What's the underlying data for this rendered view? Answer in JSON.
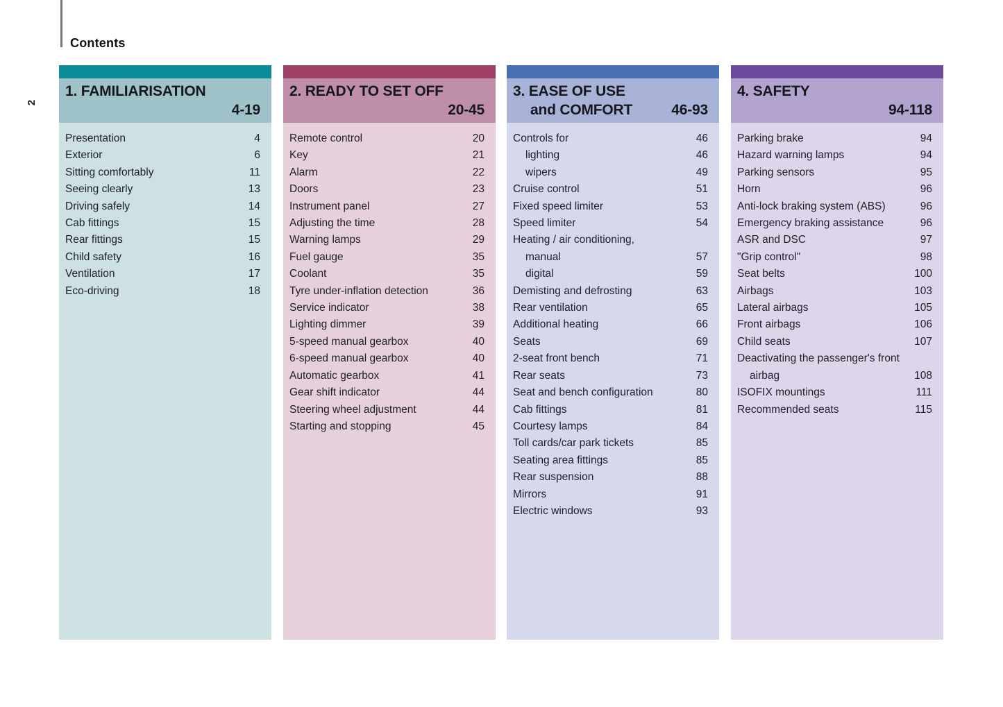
{
  "page": {
    "contents_label": "Contents",
    "page_number": "2"
  },
  "sections": [
    {
      "id": "familiarisation",
      "title_line1": "1. FAMILIARISATION",
      "title_line2": "",
      "page_range": "4-19",
      "colors": {
        "bar": "#0a8d99",
        "header": "#9fc3c8",
        "body": "#cde0e2"
      },
      "items": [
        {
          "label": "Presentation",
          "page": "4"
        },
        {
          "label": "Exterior",
          "page": "6"
        },
        {
          "label": "Sitting comfortably",
          "page": "11"
        },
        {
          "label": "Seeing clearly",
          "page": "13"
        },
        {
          "label": "Driving safely",
          "page": "14"
        },
        {
          "label": "Cab fittings",
          "page": "15"
        },
        {
          "label": "Rear fittings",
          "page": "15"
        },
        {
          "label": "Child safety",
          "page": "16"
        },
        {
          "label": "Ventilation",
          "page": "17"
        },
        {
          "label": "Eco-driving",
          "page": "18"
        }
      ]
    },
    {
      "id": "ready-to-set-off",
      "title_line1": "2. READY TO SET OFF",
      "title_line2": "",
      "page_range": "20-45",
      "colors": {
        "bar": "#a04066",
        "header": "#bf8fa7",
        "body": "#e6d0db"
      },
      "items": [
        {
          "label": "Remote control",
          "page": "20"
        },
        {
          "label": "Key",
          "page": "21"
        },
        {
          "label": "Alarm",
          "page": "22"
        },
        {
          "label": "Doors",
          "page": "23"
        },
        {
          "label": "Instrument panel",
          "page": "27"
        },
        {
          "label": "Adjusting the time",
          "page": "28"
        },
        {
          "label": "Warning lamps",
          "page": "29"
        },
        {
          "label": "Fuel gauge",
          "page": "35"
        },
        {
          "label": "Coolant",
          "page": "35"
        },
        {
          "label": "Tyre under-inflation detection",
          "page": "36"
        },
        {
          "label": "Service indicator",
          "page": "38"
        },
        {
          "label": "Lighting dimmer",
          "page": "39"
        },
        {
          "label": "5-speed manual gearbox",
          "page": "40"
        },
        {
          "label": "6-speed manual gearbox",
          "page": "40"
        },
        {
          "label": "Automatic gearbox",
          "page": "41"
        },
        {
          "label": "Gear shift indicator",
          "page": "44"
        },
        {
          "label": "Steering wheel adjustment",
          "page": "44"
        },
        {
          "label": "Starting and stopping",
          "page": "45"
        }
      ]
    },
    {
      "id": "ease-of-use-and-comfort",
      "title_line1": "3. EASE OF USE",
      "title_line2": "and COMFORT",
      "page_range": "46-93",
      "colors": {
        "bar": "#4a70b4",
        "header": "#a8b3d7",
        "body": "#d5d9eb"
      },
      "items": [
        {
          "label": "Controls for",
          "page": "46"
        },
        {
          "label": "lighting",
          "page": "46",
          "indent": true
        },
        {
          "label": "wipers",
          "page": "49",
          "indent": true
        },
        {
          "label": "Cruise control",
          "page": "51"
        },
        {
          "label": "Fixed speed limiter",
          "page": "53"
        },
        {
          "label": "Speed limiter",
          "page": "54"
        },
        {
          "label": "Heating / air conditioning,",
          "page": ""
        },
        {
          "label": "manual",
          "page": "57",
          "indent": true
        },
        {
          "label": "digital",
          "page": "59",
          "indent": true
        },
        {
          "label": "Demisting and defrosting",
          "page": "63"
        },
        {
          "label": "Rear ventilation",
          "page": "65"
        },
        {
          "label": "Additional heating",
          "page": "66"
        },
        {
          "label": "Seats",
          "page": "69"
        },
        {
          "label": "2-seat front bench",
          "page": "71"
        },
        {
          "label": "Rear seats",
          "page": "73"
        },
        {
          "label": "Seat and bench configuration",
          "page": "80"
        },
        {
          "label": "Cab fittings",
          "page": "81"
        },
        {
          "label": "Courtesy lamps",
          "page": "84"
        },
        {
          "label": "Toll cards/car park tickets",
          "page": "85"
        },
        {
          "label": "Seating area fittings",
          "page": "85"
        },
        {
          "label": "Rear suspension",
          "page": "88"
        },
        {
          "label": "Mirrors",
          "page": "91"
        },
        {
          "label": "Electric windows",
          "page": "93"
        }
      ]
    },
    {
      "id": "safety",
      "title_line1": "4. SAFETY",
      "title_line2": "",
      "page_range": "94-118",
      "colors": {
        "bar": "#6a4b9d",
        "header": "#b2a3cf",
        "body": "#ddd6ea"
      },
      "items": [
        {
          "label": "Parking brake",
          "page": "94"
        },
        {
          "label": "Hazard warning lamps",
          "page": "94"
        },
        {
          "label": "Parking sensors",
          "page": "95"
        },
        {
          "label": "Horn",
          "page": "96"
        },
        {
          "label": "Anti-lock braking system (ABS)",
          "page": "96"
        },
        {
          "label": "Emergency braking assistance",
          "page": "96"
        },
        {
          "label": "ASR and DSC",
          "page": "97"
        },
        {
          "label": "\"Grip control\"",
          "page": "98"
        },
        {
          "label": "Seat belts",
          "page": "100"
        },
        {
          "label": "Airbags",
          "page": "103"
        },
        {
          "label": "Lateral airbags",
          "page": "105"
        },
        {
          "label": "Front airbags",
          "page": "106"
        },
        {
          "label": "Child seats",
          "page": "107"
        },
        {
          "label": "Deactivating the passenger's front",
          "page": ""
        },
        {
          "label": "airbag",
          "page": "108",
          "indent": true
        },
        {
          "label": "ISOFIX mountings",
          "page": "111"
        },
        {
          "label": "Recommended seats",
          "page": "115"
        }
      ]
    }
  ]
}
